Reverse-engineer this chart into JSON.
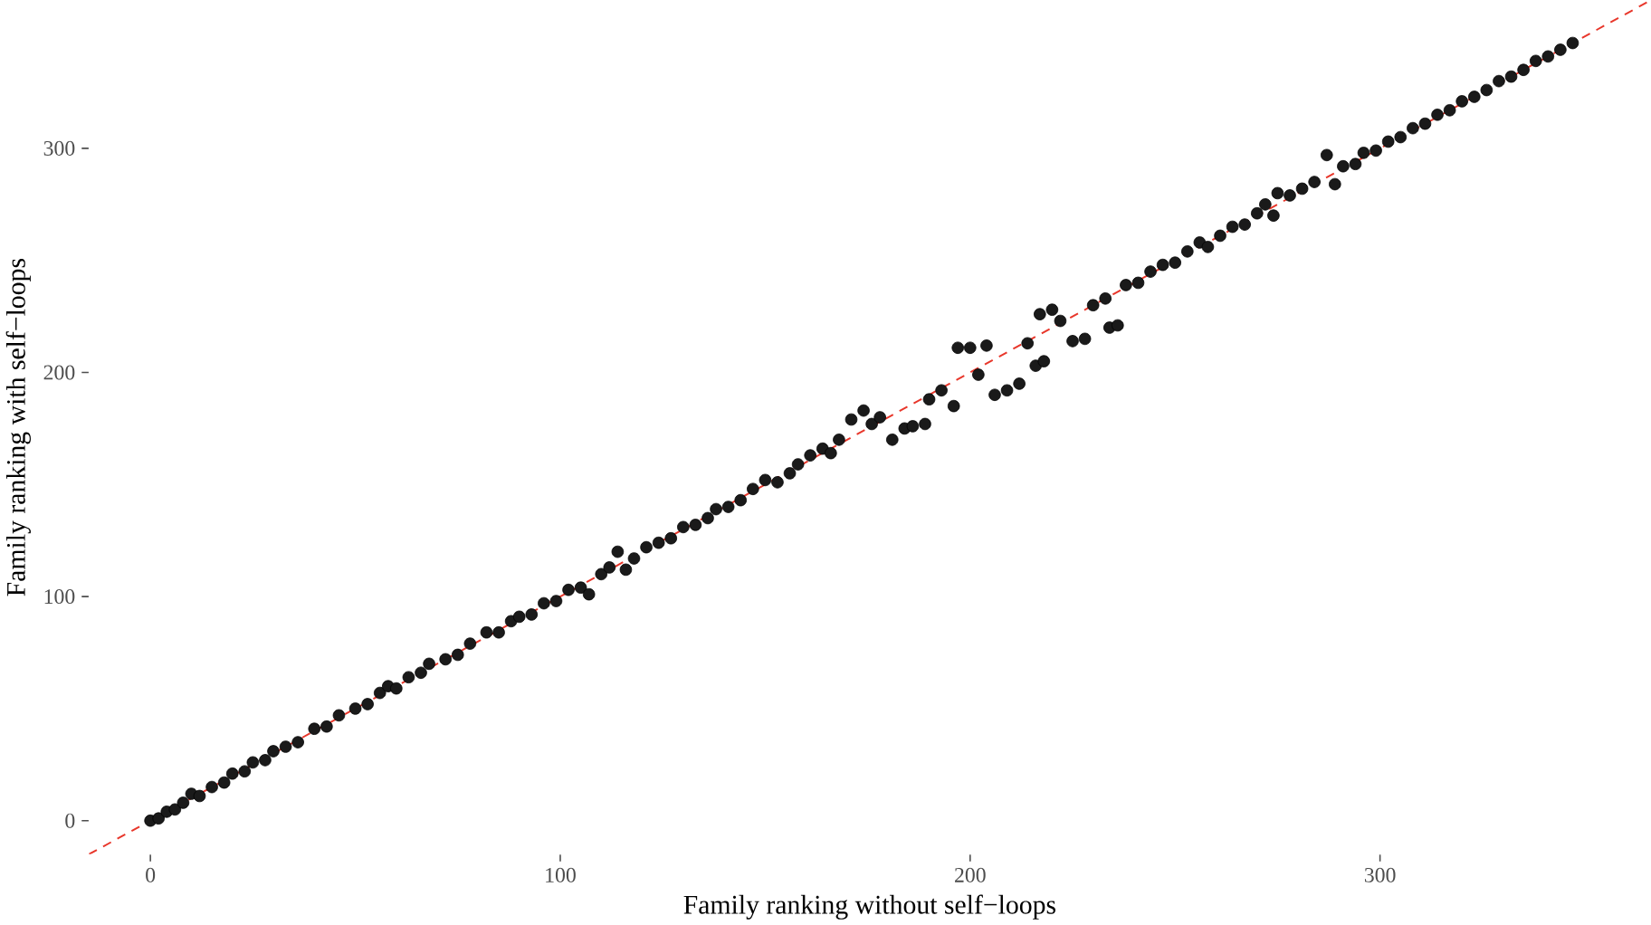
{
  "chart_data": {
    "type": "scatter",
    "xlabel": "Family ranking without self−loops",
    "ylabel": "Family ranking with self−loops",
    "xlim": [
      -15,
      366
    ],
    "ylim": [
      -15,
      366
    ],
    "xticks": [
      0,
      100,
      200,
      300
    ],
    "yticks": [
      0,
      100,
      200,
      300
    ],
    "series": [
      {
        "color": "#1a1a1a",
        "marker": "circle",
        "x": [
          0,
          2,
          4,
          6,
          8,
          10,
          12,
          15,
          18,
          20,
          23,
          25,
          28,
          30,
          33,
          36,
          40,
          43,
          46,
          50,
          53,
          56,
          58,
          60,
          63,
          66,
          68,
          72,
          75,
          78,
          82,
          85,
          88,
          90,
          93,
          96,
          99,
          102,
          105,
          107,
          110,
          112,
          114,
          116,
          118,
          121,
          124,
          127,
          130,
          133,
          136,
          138,
          141,
          144,
          147,
          150,
          153,
          156,
          158,
          161,
          164,
          166,
          168,
          171,
          174,
          176,
          178,
          181,
          184,
          186,
          189,
          190,
          193,
          196,
          197,
          200,
          202,
          204,
          206,
          209,
          212,
          214,
          216,
          217,
          218,
          220,
          222,
          225,
          228,
          230,
          233,
          234,
          236,
          238,
          241,
          244,
          247,
          250,
          253,
          256,
          258,
          261,
          264,
          267,
          270,
          272,
          274,
          275,
          278,
          281,
          284,
          287,
          289,
          291,
          294,
          296,
          299,
          302,
          305,
          308,
          311,
          314,
          317,
          320,
          323,
          326,
          329,
          332,
          335,
          338,
          341,
          344,
          347
        ],
        "values": [
          0,
          1,
          4,
          5,
          8,
          12,
          11,
          15,
          17,
          21,
          22,
          26,
          27,
          31,
          33,
          35,
          41,
          42,
          47,
          50,
          52,
          57,
          60,
          59,
          64,
          66,
          70,
          72,
          74,
          79,
          84,
          84,
          89,
          91,
          92,
          97,
          98,
          103,
          104,
          101,
          110,
          113,
          120,
          112,
          117,
          122,
          124,
          126,
          131,
          132,
          135,
          139,
          140,
          143,
          148,
          152,
          151,
          155,
          159,
          163,
          166,
          164,
          170,
          179,
          183,
          177,
          180,
          170,
          175,
          176,
          177,
          188,
          192,
          185,
          211,
          211,
          199,
          212,
          190,
          192,
          195,
          213,
          203,
          226,
          205,
          228,
          223,
          214,
          215,
          230,
          233,
          220,
          221,
          239,
          240,
          245,
          248,
          249,
          254,
          258,
          256,
          261,
          265,
          266,
          271,
          275,
          270,
          280,
          279,
          282,
          285,
          297,
          284,
          292,
          293,
          298,
          299,
          303,
          305,
          309,
          311,
          315,
          317,
          321,
          323,
          326,
          330,
          332,
          335,
          339,
          341,
          344,
          347
        ]
      },
      {
        "type": "line",
        "color": "#e8372b",
        "line_style": "dashed",
        "marker": "none",
        "x": [
          -15,
          366
        ],
        "values": [
          -15,
          366
        ]
      }
    ]
  }
}
